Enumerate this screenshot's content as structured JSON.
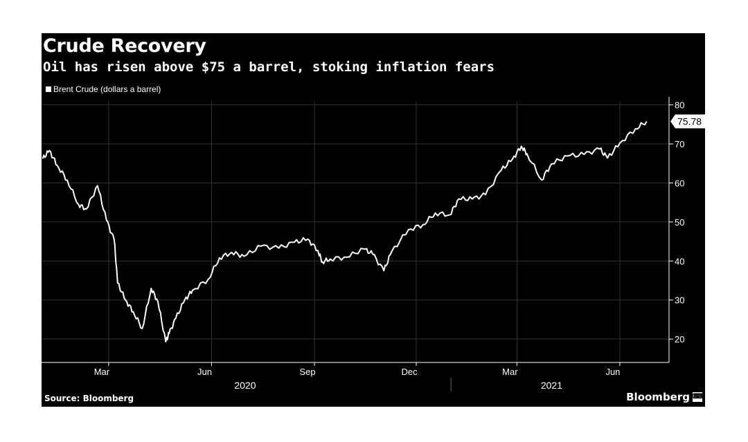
{
  "header": {
    "title": "Crude Recovery",
    "subtitle": "Oil has risen above $75 a barrel, stoking inflation fears"
  },
  "legend": {
    "label": "Brent Crude (dollars a barrel)"
  },
  "footer": {
    "source": "Source: Bloomberg",
    "brand": "Bloomberg",
    "brand_icon": "bloomberg-terminal-icon"
  },
  "colors": {
    "background": "#000000",
    "line": "#ffffff",
    "grid": "#333333"
  },
  "chart_data": {
    "type": "line",
    "title": "Crude Recovery",
    "subtitle": "Oil has risen above $75 a barrel, stoking inflation fears",
    "series": [
      {
        "name": "Brent Crude (dollars a barrel)",
        "x": [
          "2020-01-02",
          "2020-01-08",
          "2020-01-15",
          "2020-01-24",
          "2020-02-03",
          "2020-02-10",
          "2020-02-20",
          "2020-02-28",
          "2020-03-06",
          "2020-03-09",
          "2020-03-16",
          "2020-03-23",
          "2020-03-31",
          "2020-04-08",
          "2020-04-14",
          "2020-04-21",
          "2020-04-24",
          "2020-04-30",
          "2020-05-08",
          "2020-05-15",
          "2020-05-29",
          "2020-06-08",
          "2020-06-19",
          "2020-06-30",
          "2020-07-15",
          "2020-07-31",
          "2020-08-14",
          "2020-08-26",
          "2020-09-04",
          "2020-09-08",
          "2020-09-15",
          "2020-09-30",
          "2020-10-15",
          "2020-10-23",
          "2020-11-02",
          "2020-11-09",
          "2020-11-24",
          "2020-12-07",
          "2020-12-18",
          "2020-12-31",
          "2021-01-08",
          "2021-01-20",
          "2021-02-01",
          "2021-02-15",
          "2021-02-25",
          "2021-03-05",
          "2021-03-10",
          "2021-03-23",
          "2021-04-01",
          "2021-04-15",
          "2021-04-30",
          "2021-05-14",
          "2021-05-21",
          "2021-06-01",
          "2021-06-15",
          "2021-06-25"
        ],
        "y": [
          66.2,
          68.3,
          64.5,
          60.7,
          54.5,
          53.3,
          59.3,
          50.5,
          45.3,
          34.4,
          30.0,
          27.0,
          22.7,
          33.0,
          29.6,
          19.3,
          21.4,
          25.3,
          30.0,
          32.5,
          35.3,
          40.8,
          42.2,
          41.2,
          43.8,
          43.3,
          44.8,
          45.6,
          42.7,
          39.8,
          40.5,
          41.0,
          43.1,
          41.8,
          37.5,
          42.4,
          48.0,
          49.3,
          52.3,
          51.8,
          55.9,
          55.9,
          57.0,
          63.3,
          66.1,
          69.4,
          67.5,
          60.8,
          64.9,
          66.9,
          67.3,
          68.7,
          66.4,
          70.2,
          73.9,
          75.78
        ]
      }
    ],
    "xlabel": "",
    "ylabel": "",
    "x_ticks": [
      "Mar",
      "Jun",
      "Sep",
      "Dec",
      "Mar",
      "Jun"
    ],
    "x_tick_dates": [
      "2020-03-01",
      "2020-06-01",
      "2020-09-01",
      "2020-12-01",
      "2021-03-01",
      "2021-06-01"
    ],
    "year_labels": [
      "2020",
      "2021"
    ],
    "year_label_dates": [
      "2020-07-01",
      "2021-04-01"
    ],
    "y_ticks": [
      20,
      30,
      40,
      50,
      60,
      70,
      80
    ],
    "ylim": [
      14,
      81
    ],
    "xlim": [
      "2020-01-01",
      "2021-07-15"
    ],
    "last_value_label": "75.78",
    "grid": true,
    "legend_position": "top-left",
    "y_axis_side": "right"
  }
}
